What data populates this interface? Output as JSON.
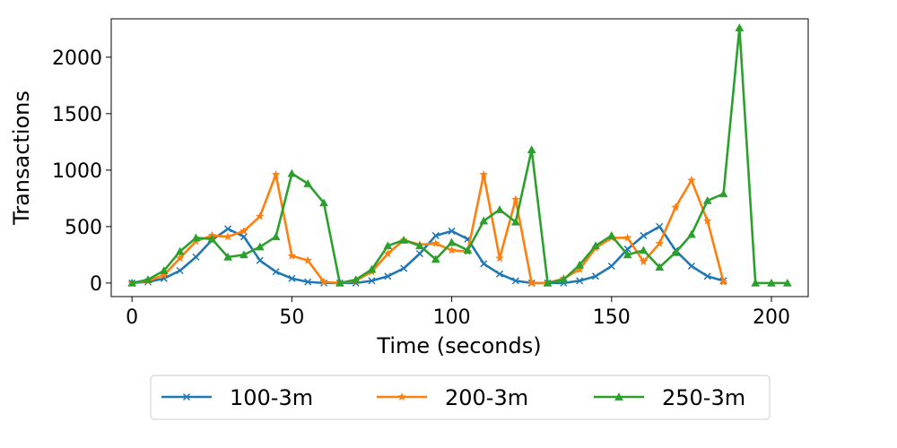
{
  "chart_data": {
    "type": "line",
    "xlabel": "Time (seconds)",
    "ylabel": "Transactions",
    "xlim": [
      -6.5,
      211.5
    ],
    "ylim": [
      -120,
      2340
    ],
    "xticks": [
      0,
      50,
      100,
      150,
      200
    ],
    "yticks": [
      0,
      500,
      1000,
      1500,
      2000
    ],
    "grid": false,
    "legend_position": "bottom-center",
    "x": [
      0,
      5,
      10,
      15,
      20,
      25,
      30,
      35,
      40,
      45,
      50,
      55,
      60,
      65,
      70,
      75,
      80,
      85,
      90,
      95,
      100,
      105,
      110,
      115,
      120,
      125,
      130,
      135,
      140,
      145,
      150,
      155,
      160,
      165,
      170,
      175,
      180,
      185,
      190,
      195,
      200,
      205
    ],
    "series": [
      {
        "name": "100-3m",
        "color": "#1f77b4",
        "marker": "x",
        "values": [
          0,
          10,
          40,
          110,
          230,
          380,
          480,
          410,
          200,
          100,
          40,
          10,
          0,
          0,
          0,
          20,
          60,
          130,
          260,
          420,
          460,
          390,
          170,
          80,
          20,
          0,
          0,
          0,
          20,
          60,
          150,
          300,
          420,
          500,
          290,
          150,
          60,
          20,
          null,
          null,
          null,
          null
        ]
      },
      {
        "name": "200-3m",
        "color": "#ff7f0e",
        "marker": "star",
        "values": [
          0,
          20,
          70,
          220,
          370,
          420,
          410,
          460,
          590,
          960,
          240,
          200,
          10,
          0,
          20,
          100,
          260,
          380,
          340,
          350,
          290,
          280,
          960,
          220,
          740,
          0,
          0,
          40,
          120,
          310,
          400,
          400,
          190,
          350,
          670,
          910,
          550,
          10,
          null,
          null,
          null,
          null
        ]
      },
      {
        "name": "250-3m",
        "color": "#2ca02c",
        "marker": "triangle",
        "values": [
          0,
          30,
          110,
          280,
          400,
          390,
          230,
          250,
          320,
          410,
          970,
          880,
          710,
          0,
          30,
          120,
          330,
          380,
          330,
          210,
          360,
          290,
          550,
          650,
          540,
          1180,
          0,
          30,
          160,
          330,
          420,
          250,
          290,
          140,
          270,
          430,
          730,
          790,
          2260,
          0,
          0,
          0
        ]
      }
    ]
  }
}
